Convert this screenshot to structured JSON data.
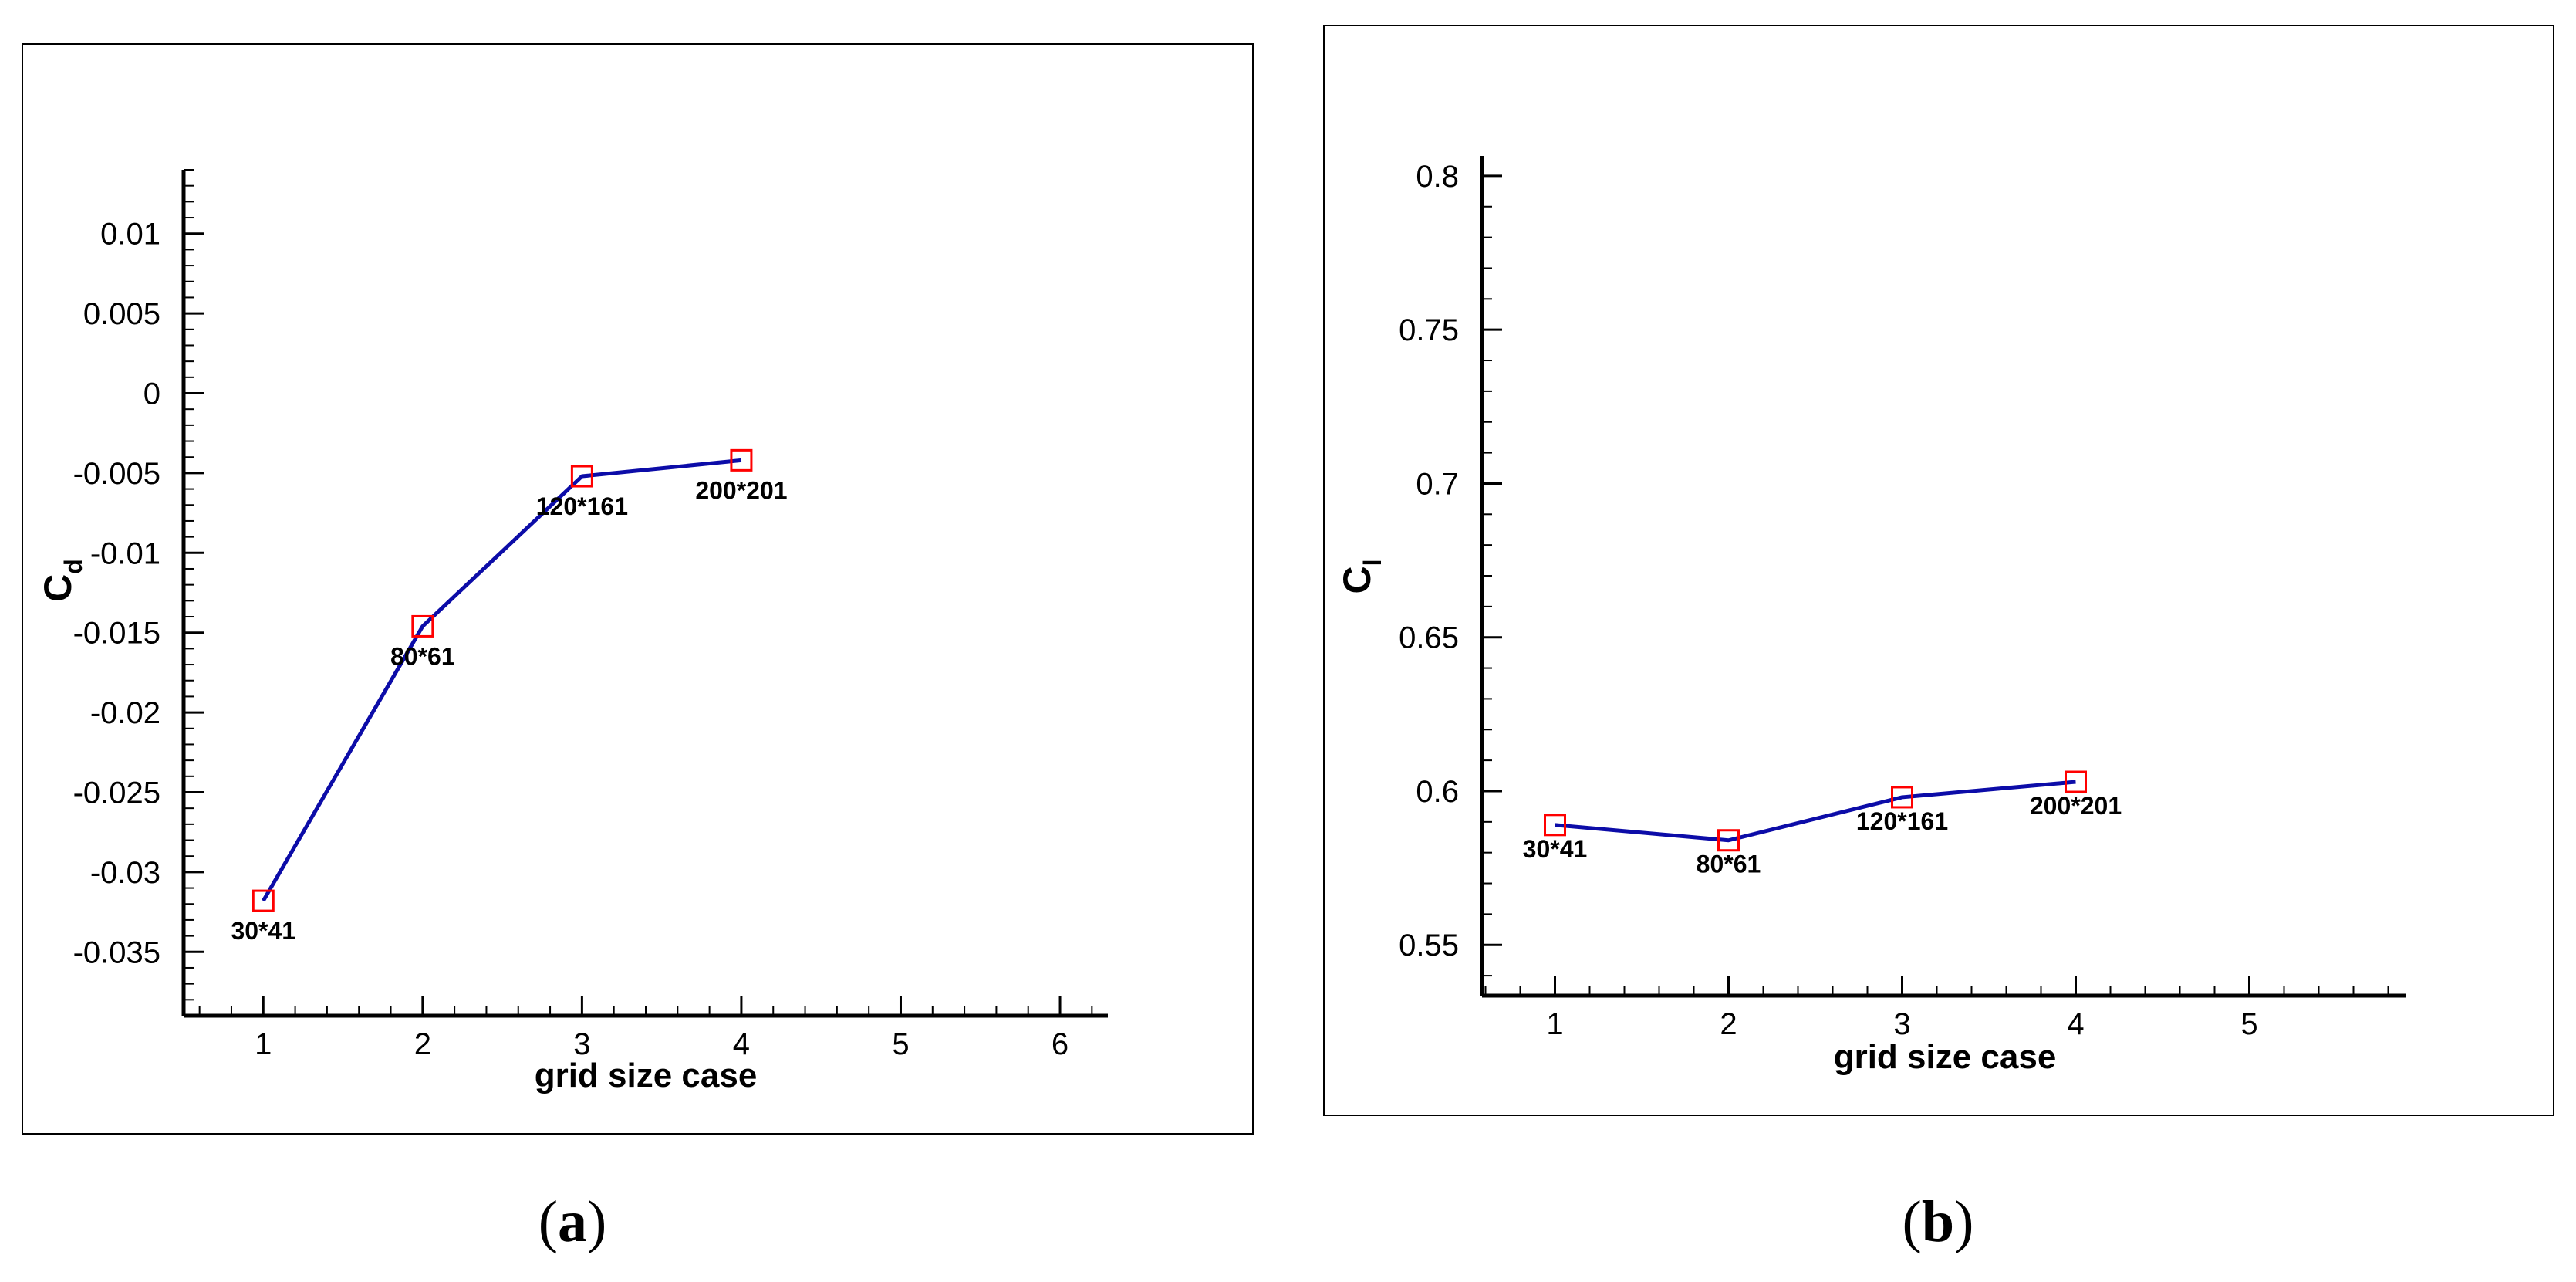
{
  "chart_data": [
    {
      "type": "line",
      "panel_label": "a",
      "xlabel": "grid size case",
      "ylabel": "C",
      "ylabel_sub": "d",
      "xlim": [
        0.5,
        6.3
      ],
      "ylim": [
        -0.039,
        0.014
      ],
      "x_ticks": [
        1,
        2,
        3,
        4,
        5,
        6
      ],
      "y_ticks": [
        0.01,
        0.005,
        0,
        -0.005,
        -0.01,
        -0.015,
        -0.02,
        -0.025,
        -0.03,
        -0.035
      ],
      "y_tick_labels": [
        "0.01",
        "0.005",
        "0",
        "-0.005",
        "-0.01",
        "-0.015",
        "-0.02",
        "-0.025",
        "-0.03",
        "-0.035"
      ],
      "x_minor_step": 0.2,
      "y_minor_step": 0.001,
      "series": [
        {
          "name": "C_d",
          "line_color": "#0c0ca8",
          "marker_color": "#ff0000",
          "x": [
            1,
            2,
            3,
            4
          ],
          "y": [
            -0.0318,
            -0.0146,
            -0.0052,
            -0.0042
          ],
          "labels": [
            "30*41",
            "80*61",
            "120*161",
            "200*201"
          ]
        }
      ]
    },
    {
      "type": "line",
      "panel_label": "b",
      "xlabel": "grid size case",
      "ylabel": "C",
      "ylabel_sub": "l",
      "xlim": [
        0.58,
        5.9
      ],
      "ylim": [
        0.5335,
        0.8065
      ],
      "x_ticks": [
        1,
        2,
        3,
        4,
        5
      ],
      "y_ticks": [
        0.8,
        0.75,
        0.7,
        0.65,
        0.6,
        0.55
      ],
      "y_tick_labels": [
        "0.8",
        "0.75",
        "0.7",
        "0.65",
        "0.6",
        "0.55"
      ],
      "x_minor_step": 0.2,
      "y_minor_step": 0.01,
      "series": [
        {
          "name": "C_l",
          "line_color": "#0c0ca8",
          "marker_color": "#ff0000",
          "x": [
            1,
            2,
            3,
            4
          ],
          "y": [
            0.589,
            0.584,
            0.598,
            0.603
          ],
          "labels": [
            "30*41",
            "80*61",
            "120*161",
            "200*201"
          ]
        }
      ]
    }
  ]
}
